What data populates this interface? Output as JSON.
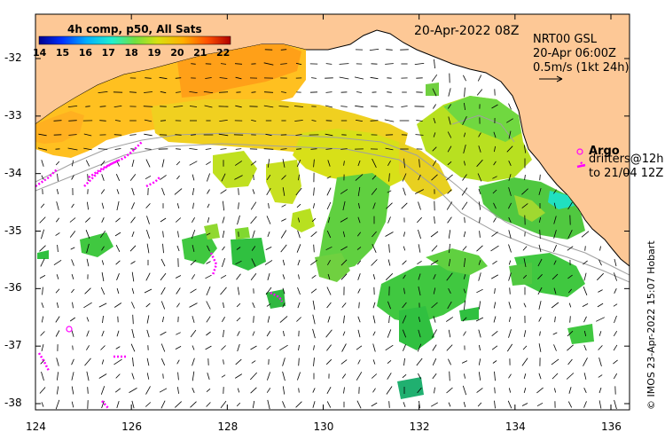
{
  "product_label": "4h comp, p50, All Sats",
  "datetime": "20-Apr-2022 08Z",
  "currents": {
    "model": "NRT00 GSL",
    "time": "20-Apr 06:00Z",
    "scale": "0.5m/s (1kt 24h)"
  },
  "argo": {
    "title": "Argo",
    "drifters_text": "drifters@12h",
    "drifters_time": "to 21/04 12Z",
    "marker_color": "#ff00ff"
  },
  "credit": "© IMOS 23-Apr-2022 15:07 Hobart",
  "colorbar": {
    "ticks": [
      "14",
      "15",
      "16",
      "17",
      "18",
      "19",
      "20",
      "21",
      "22"
    ],
    "colors": [
      "#00008f",
      "#0020ff",
      "#00a0ff",
      "#20ffd0",
      "#80ff60",
      "#e0ff10",
      "#ffb000",
      "#ff4000",
      "#b00000"
    ]
  },
  "land_color": "#fdc896",
  "x_axis": {
    "ticks": [
      "124",
      "126",
      "128",
      "130",
      "132",
      "134",
      "136"
    ]
  },
  "y_axis": {
    "ticks": [
      "-32",
      "-33",
      "-34",
      "-35",
      "-36",
      "-37",
      "-38"
    ]
  },
  "icons": {
    "arrow": "scale-arrow-icon",
    "argo_marker": "magenta-circle-icon"
  }
}
